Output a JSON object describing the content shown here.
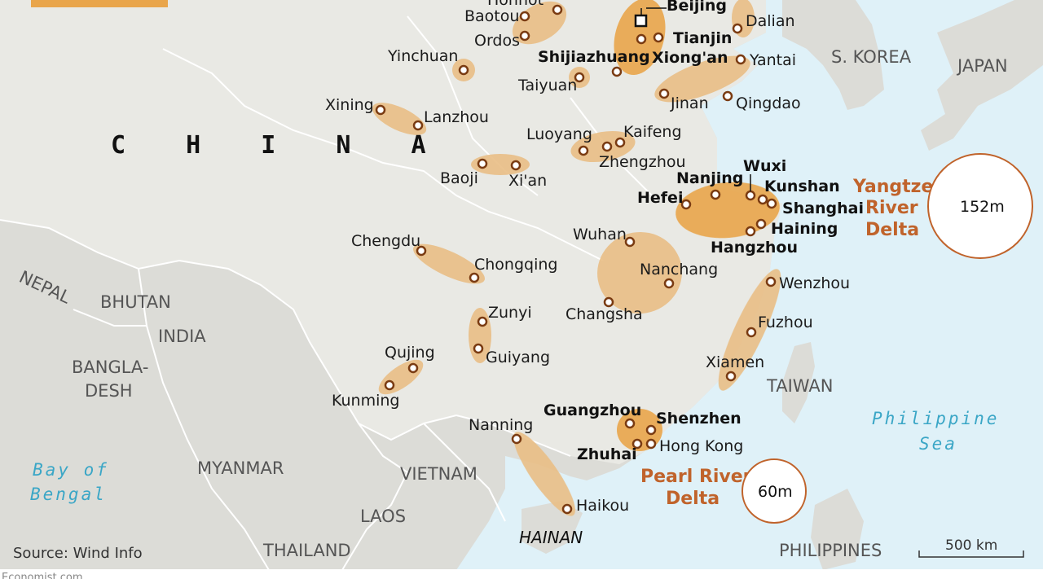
{
  "countries": {
    "china": "C H I N A",
    "skorea": "S. KOREA",
    "japan": "JAPAN",
    "nepal": "NEPAL",
    "bhutan": "BHUTAN",
    "india": "INDIA",
    "bangladesh_1": "BANGLA-",
    "bangladesh_2": "DESH",
    "myanmar": "MYANMAR",
    "vietnam": "VIETNAM",
    "laos": "LAOS",
    "thailand": "THAILAND",
    "taiwan": "TAIWAN",
    "philippines": "PHILIPPINES",
    "hainan": "HAINAN"
  },
  "seas": {
    "bay_of_bengal_1": "Bay of",
    "bay_of_bengal_2": "Bengal",
    "philippine_sea_1": "Philippine",
    "philippine_sea_2": "Sea"
  },
  "cities": {
    "hohhot": "Hohhot",
    "baotou": "Baotou",
    "ordos": "Ordos",
    "beijing": "Beijing",
    "tianjin": "Tianjin",
    "xiongan": "Xiong'an",
    "shijiazhuang": "Shijiazhuang",
    "dalian": "Dalian",
    "yantai": "Yantai",
    "yinchuan": "Yinchuan",
    "taiyuan": "Taiyuan",
    "jinan": "Jinan",
    "qingdao": "Qingdao",
    "xining": "Xining",
    "lanzhou": "Lanzhou",
    "luoyang": "Luoyang",
    "kaifeng": "Kaifeng",
    "zhengzhou": "Zhengzhou",
    "baoji": "Baoji",
    "xian": "Xi'an",
    "nanjing": "Nanjing",
    "wuxi": "Wuxi",
    "kunshan": "Kunshan",
    "hefei": "Hefei",
    "shanghai": "Shanghai",
    "haining": "Haining",
    "hangzhou": "Hangzhou",
    "chengdu": "Chengdu",
    "chongqing": "Chongqing",
    "wuhan": "Wuhan",
    "nanchang": "Nanchang",
    "changsha": "Changsha",
    "wenzhou": "Wenzhou",
    "fuzhou": "Fuzhou",
    "xiamen": "Xiamen",
    "zunyi": "Zunyi",
    "guiyang": "Guiyang",
    "qujing": "Qujing",
    "kunming": "Kunming",
    "guangzhou": "Guangzhou",
    "shenzhen": "Shenzhen",
    "zhuhai": "Zhuhai",
    "hongkong": "Hong Kong",
    "nanning": "Nanning",
    "haikou": "Haikou"
  },
  "deltas": {
    "yangtze_1": "Yangtze",
    "yangtze_2": "River",
    "yangtze_3": "Delta",
    "yangtze_pop": "152m",
    "pearl_1": "Pearl River",
    "pearl_2": "Delta",
    "pearl_pop": "60m"
  },
  "scale_label": "500 km",
  "source": "Source: Wind Info",
  "footer_text": "Economist.com",
  "colors": {
    "land": "#dcdcd7",
    "china_land": "#e9e9e4",
    "sea": "#dff1f8",
    "cluster": "#e9be85",
    "cluster_major": "#e9a54a",
    "delta_text": "#c0632b"
  }
}
